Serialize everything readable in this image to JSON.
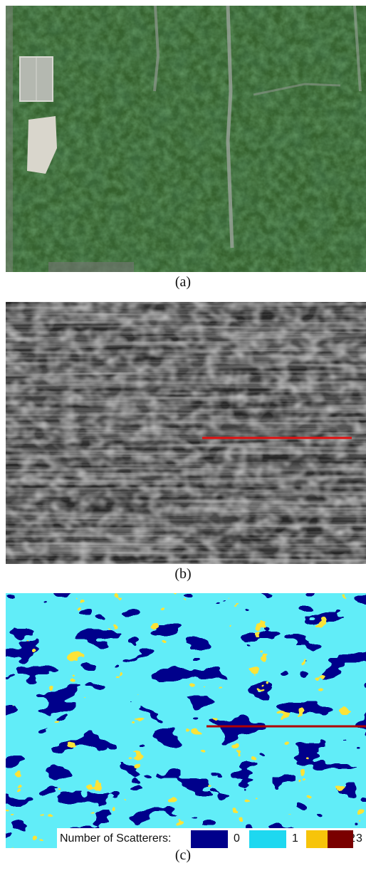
{
  "captions": {
    "a": "(a)",
    "b": "(b)",
    "c": "(c)"
  },
  "legend": {
    "title": "Number of Scatterers:",
    "items": [
      {
        "label": "0",
        "color": "#00008b"
      },
      {
        "label": "1",
        "color": "#1ed8f0"
      },
      {
        "label": "2",
        "color": "#f7c40a"
      },
      {
        "label": "3",
        "color": "#7a0000"
      }
    ]
  },
  "colors": {
    "canopy": "#2f5a2a",
    "tomo_background": "#2a2a2a",
    "transect_line": "#e01010",
    "transect_line_c": "#b00000"
  }
}
